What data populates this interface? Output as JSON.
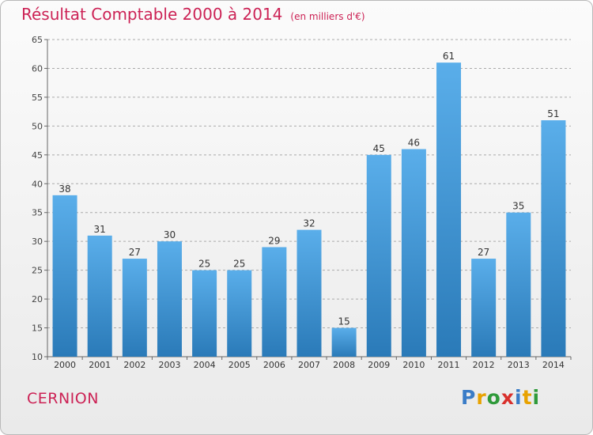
{
  "title": "Résultat Comptable 2000 à 2014",
  "subtitle": "(en milliers d'€)",
  "town": "CERNION",
  "logo": {
    "text": "Proxiti",
    "letter_colors": [
      "#3a7cc7",
      "#e8a200",
      "#2f9a3a",
      "#d9302c",
      "#3a7cc7",
      "#e8a200",
      "#2f9a3a"
    ]
  },
  "colors": {
    "bar_light": "#5aaeea",
    "bar_dark": "#2a7ab8",
    "title": "#cc2255",
    "grid": "#aaaaaa"
  },
  "chart_data": {
    "type": "bar",
    "title": "Résultat Comptable 2000 à 2014",
    "categories": [
      "2000",
      "2001",
      "2002",
      "2003",
      "2004",
      "2005",
      "2006",
      "2007",
      "2008",
      "2009",
      "2010",
      "2011",
      "2012",
      "2013",
      "2014"
    ],
    "values": [
      38,
      31,
      27,
      30,
      25,
      25,
      29,
      32,
      15,
      45,
      46,
      61,
      27,
      35,
      51
    ],
    "ylim": [
      10,
      65
    ],
    "yticks": [
      10,
      15,
      20,
      25,
      30,
      35,
      40,
      45,
      50,
      55,
      60,
      65
    ],
    "grid": "horizontal dashed"
  }
}
